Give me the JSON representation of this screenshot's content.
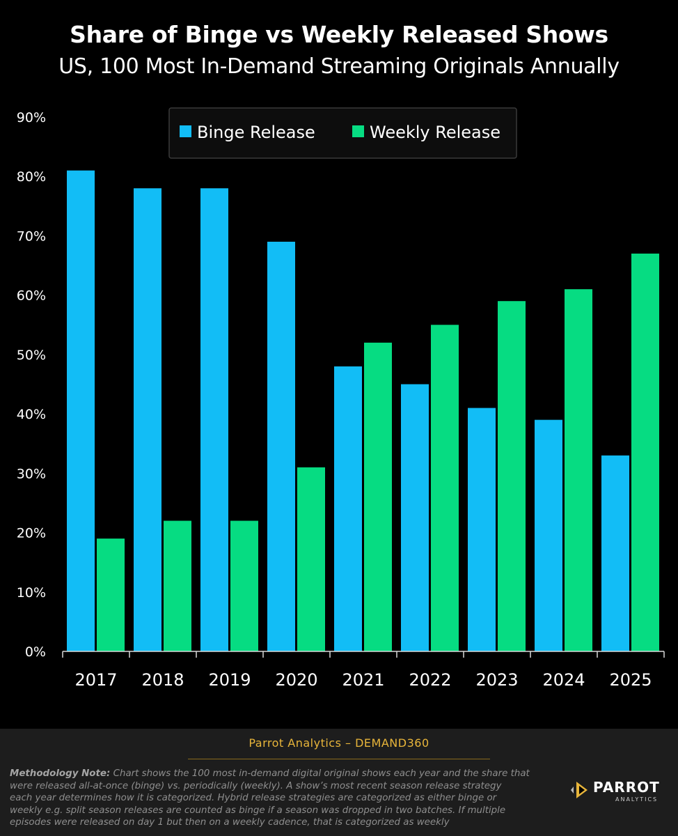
{
  "title": "Share of Binge vs Weekly Released Shows",
  "subtitle": "US, 100 Most In-Demand Streaming Originals Annually",
  "chart_data": {
    "type": "bar",
    "categories": [
      "2017",
      "2018",
      "2019",
      "2020",
      "2021",
      "2022",
      "2023",
      "2024",
      "2025"
    ],
    "series": [
      {
        "name": "Binge Release",
        "values": [
          81,
          78,
          78,
          69,
          48,
          45,
          41,
          39,
          33
        ],
        "color": "#12bdf6"
      },
      {
        "name": "Weekly Release",
        "values": [
          19,
          22,
          22,
          31,
          52,
          55,
          59,
          61,
          67
        ],
        "color": "#06dc82"
      }
    ],
    "ylim": [
      0,
      90
    ],
    "yticks": [
      0,
      10,
      20,
      30,
      40,
      50,
      60,
      70,
      80,
      90
    ],
    "ytick_labels": [
      "0%",
      "10%",
      "20%",
      "30%",
      "40%",
      "50%",
      "60%",
      "70%",
      "80%",
      "90%"
    ],
    "grid": false,
    "legend": "top-center",
    "xlabel": "",
    "ylabel": ""
  },
  "source": "Parrot Analytics – DEMAND360",
  "methodology": {
    "label": "Methodology Note:",
    "lines": [
      "Chart shows the 100 most in-demand digital original shows each year and the share that",
      "were released all-at-once (binge) vs. periodically (weekly).  A show’s most recent season release strategy",
      "each year determines how it is categorized.  Hybrid release strategies are categorized as either binge or",
      "weekly e.g. split season releases are counted as binge if a season was dropped in two batches. If multiple",
      "episodes were released on day 1 but then on a weekly cadence, that is categorized as weekly"
    ]
  },
  "logo": {
    "name": "PARROT",
    "tagline": "ANALYTICS"
  }
}
